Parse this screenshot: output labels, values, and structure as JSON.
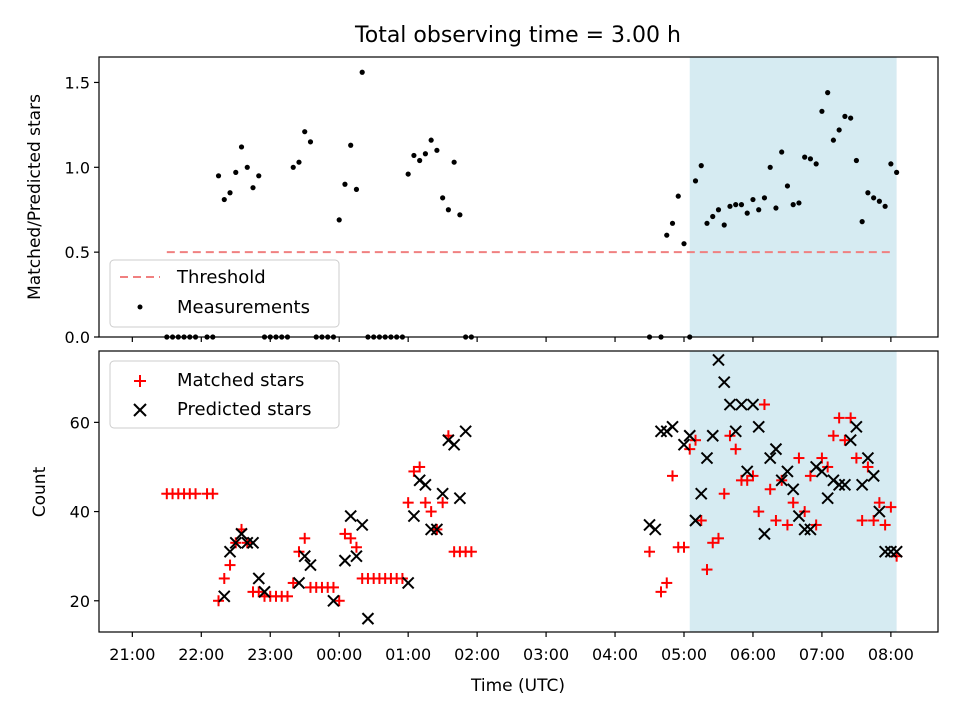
{
  "chart_data": {
    "title": "Total observing time = 3.00 h",
    "xlabel": "Time (UTC)",
    "x_tick_labels": [
      "21:00",
      "22:00",
      "23:00",
      "00:00",
      "01:00",
      "02:00",
      "03:00",
      "04:00",
      "05:00",
      "06:00",
      "07:00",
      "08:00"
    ],
    "highlight_span": {
      "start": "05:05",
      "end": "08:05",
      "color": "#add8e6"
    },
    "panels": [
      {
        "type": "scatter",
        "ylabel": "Matched/Predicted stars",
        "ylim": [
          0,
          1.65
        ],
        "y_tick_labels": [
          "0.0",
          "0.5",
          "1.0",
          "1.5"
        ],
        "legend": {
          "placement": "lower-left",
          "entries": [
            "Threshold",
            "Measurements"
          ]
        },
        "threshold": {
          "name": "Threshold",
          "value": 0.5,
          "x_start": "21:30",
          "x_end": "08:02",
          "color": "#f08080",
          "style": "dashed"
        },
        "measurements": {
          "name": "Measurements",
          "color": "#000000",
          "x": [
            "21:30",
            "21:35",
            "21:40",
            "21:45",
            "21:50",
            "21:55",
            "22:05",
            "22:10",
            "22:15",
            "22:20",
            "22:25",
            "22:30",
            "22:35",
            "22:40",
            "22:45",
            "22:50",
            "22:55",
            "23:00",
            "23:05",
            "23:10",
            "23:15",
            "23:20",
            "23:25",
            "23:30",
            "23:35",
            "23:40",
            "23:45",
            "23:50",
            "23:55",
            "24:00",
            "24:05",
            "24:10",
            "24:15",
            "24:20",
            "24:25",
            "24:30",
            "24:35",
            "24:40",
            "24:45",
            "24:50",
            "24:55",
            "25:00",
            "25:05",
            "25:10",
            "25:15",
            "25:20",
            "25:25",
            "25:30",
            "25:35",
            "25:40",
            "25:45",
            "25:50",
            "25:55",
            "28:30",
            "28:40",
            "28:45",
            "28:50",
            "28:55",
            "29:00",
            "29:05",
            "29:10",
            "29:15",
            "29:20",
            "29:25",
            "29:30",
            "29:35",
            "29:40",
            "29:45",
            "29:50",
            "29:55",
            "30:00",
            "30:05",
            "30:10",
            "30:15",
            "30:20",
            "30:25",
            "30:30",
            "30:35",
            "30:40",
            "30:45",
            "30:50",
            "30:55",
            "31:00",
            "31:05",
            "31:10",
            "31:15",
            "31:20",
            "31:25",
            "31:30",
            "31:35",
            "31:40",
            "31:45",
            "31:50",
            "31:55",
            "32:00",
            "32:05"
          ],
          "y": [
            0,
            0,
            0,
            0,
            0,
            0,
            0,
            0,
            0.95,
            0.81,
            0.85,
            0.97,
            1.12,
            1.0,
            0.88,
            0.95,
            0,
            0,
            0,
            0,
            0,
            1.0,
            1.03,
            1.21,
            1.15,
            0,
            0,
            0,
            0,
            0.69,
            0.9,
            1.13,
            0.87,
            1.56,
            0,
            0,
            0,
            0,
            0,
            0,
            0,
            0.96,
            1.07,
            1.04,
            1.08,
            1.16,
            1.1,
            0.82,
            0.75,
            1.03,
            0.72,
            0,
            0,
            0,
            0,
            0.6,
            0.67,
            0.83,
            0.55,
            0,
            0.92,
            1.01,
            0.67,
            0.71,
            0.75,
            0.66,
            0.77,
            0.78,
            0.78,
            0.73,
            0.81,
            0.75,
            0.82,
            1.0,
            0.76,
            1.09,
            0.89,
            0.78,
            0.79,
            1.06,
            1.05,
            1.02,
            1.33,
            1.44,
            1.16,
            1.22,
            1.3,
            1.29,
            1.04,
            0.68,
            0.85,
            0.82,
            0.8,
            0.77,
            1.02,
            0.97
          ]
        }
      },
      {
        "type": "scatter",
        "ylabel": "Count",
        "ylim": [
          13,
          76
        ],
        "y_tick_labels": [
          "20",
          "40",
          "60"
        ],
        "legend": {
          "placement": "upper-left",
          "entries": [
            "Matched stars",
            "Predicted stars"
          ]
        },
        "matched": {
          "name": "Matched stars",
          "color": "#ff0000",
          "x": [
            "21:30",
            "21:35",
            "21:40",
            "21:45",
            "21:50",
            "21:55",
            "22:05",
            "22:10",
            "22:15",
            "22:20",
            "22:25",
            "22:30",
            "22:35",
            "22:40",
            "22:45",
            "22:50",
            "22:55",
            "23:00",
            "23:05",
            "23:10",
            "23:15",
            "23:20",
            "23:25",
            "23:30",
            "23:35",
            "23:40",
            "23:45",
            "23:50",
            "23:55",
            "24:00",
            "24:05",
            "24:10",
            "24:15",
            "24:20",
            "24:25",
            "24:30",
            "24:35",
            "24:40",
            "24:45",
            "24:50",
            "24:55",
            "25:00",
            "25:05",
            "25:10",
            "25:15",
            "25:20",
            "25:25",
            "25:30",
            "25:35",
            "25:40",
            "25:45",
            "25:50",
            "25:55",
            "28:30",
            "28:40",
            "28:45",
            "28:50",
            "28:55",
            "29:00",
            "29:05",
            "29:10",
            "29:15",
            "29:20",
            "29:25",
            "29:30",
            "29:35",
            "29:40",
            "29:45",
            "29:50",
            "29:55",
            "30:00",
            "30:05",
            "30:10",
            "30:15",
            "30:20",
            "30:25",
            "30:30",
            "30:35",
            "30:40",
            "30:45",
            "30:50",
            "30:55",
            "31:00",
            "31:05",
            "31:10",
            "31:15",
            "31:20",
            "31:25",
            "31:30",
            "31:35",
            "31:40",
            "31:45",
            "31:50",
            "31:55",
            "32:00",
            "32:05"
          ],
          "y": [
            44,
            44,
            44,
            44,
            44,
            44,
            44,
            44,
            20,
            25,
            28,
            33,
            36,
            33,
            22,
            22,
            21,
            21,
            21,
            21,
            21,
            24,
            31,
            34,
            23,
            23,
            23,
            23,
            23,
            20,
            35,
            34,
            32,
            25,
            25,
            25,
            25,
            25,
            25,
            25,
            25,
            42,
            49,
            50,
            42,
            40,
            36,
            42,
            57,
            31,
            31,
            31,
            31,
            31,
            22,
            24,
            48,
            32,
            32,
            54,
            56,
            38,
            27,
            33,
            34,
            44,
            57,
            54,
            47,
            47,
            48,
            40,
            64,
            45,
            38,
            47,
            37,
            42,
            52,
            40,
            48,
            37,
            52,
            50,
            57,
            61,
            56,
            61,
            52,
            38,
            50,
            38,
            42,
            37,
            41,
            30
          ]
        },
        "predicted": {
          "name": "Predicted stars",
          "color": "#000000",
          "x": [
            "22:20",
            "22:25",
            "22:30",
            "22:35",
            "22:40",
            "22:45",
            "22:50",
            "22:55",
            "23:25",
            "23:30",
            "23:35",
            "23:55",
            "24:05",
            "24:10",
            "24:15",
            "24:20",
            "24:25",
            "25:00",
            "25:05",
            "25:10",
            "25:15",
            "25:20",
            "25:25",
            "25:30",
            "25:35",
            "25:40",
            "25:45",
            "25:50",
            "28:30",
            "28:35",
            "28:40",
            "28:45",
            "28:50",
            "29:00",
            "29:05",
            "29:10",
            "29:15",
            "29:20",
            "29:25",
            "29:30",
            "29:35",
            "29:40",
            "29:45",
            "29:50",
            "29:55",
            "30:00",
            "30:05",
            "30:10",
            "30:15",
            "30:20",
            "30:25",
            "30:30",
            "30:35",
            "30:40",
            "30:45",
            "30:50",
            "30:55",
            "31:00",
            "31:05",
            "31:10",
            "31:15",
            "31:20",
            "31:25",
            "31:30",
            "31:35",
            "31:40",
            "31:45",
            "31:50",
            "31:55",
            "32:00",
            "32:05"
          ],
          "y": [
            21,
            31,
            33,
            35,
            33,
            33,
            25,
            22,
            24,
            30,
            28,
            20,
            29,
            39,
            30,
            37,
            16,
            24,
            39,
            47,
            46,
            36,
            36,
            44,
            56,
            55,
            43,
            58,
            37,
            36,
            58,
            58,
            59,
            55,
            57,
            38,
            44,
            52,
            57,
            74,
            69,
            64,
            58,
            64,
            49,
            64,
            59,
            35,
            52,
            54,
            47,
            49,
            45,
            39,
            36,
            36,
            50,
            49,
            43,
            47,
            46,
            46,
            56,
            59,
            46,
            52,
            48,
            40,
            31,
            31,
            31
          ]
        }
      }
    ]
  }
}
